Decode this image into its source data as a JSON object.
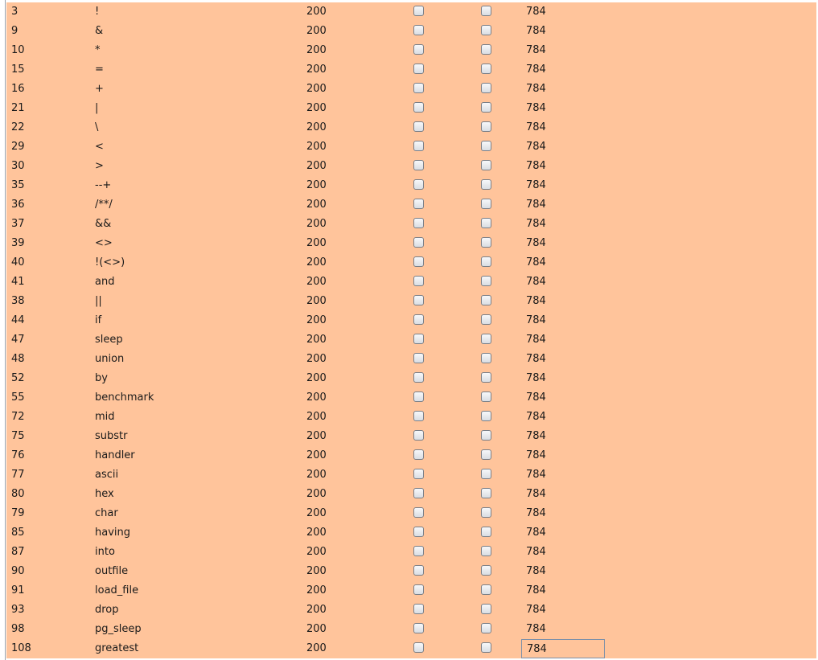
{
  "table": {
    "rows": [
      {
        "id": "3",
        "payload": "!",
        "status": "200",
        "length": "784"
      },
      {
        "id": "9",
        "payload": "&",
        "status": "200",
        "length": "784"
      },
      {
        "id": "10",
        "payload": "*",
        "status": "200",
        "length": "784"
      },
      {
        "id": "15",
        "payload": "=",
        "status": "200",
        "length": "784"
      },
      {
        "id": "16",
        "payload": "+",
        "status": "200",
        "length": "784"
      },
      {
        "id": "21",
        "payload": "|",
        "status": "200",
        "length": "784"
      },
      {
        "id": "22",
        "payload": "\\",
        "status": "200",
        "length": "784"
      },
      {
        "id": "29",
        "payload": "<",
        "status": "200",
        "length": "784"
      },
      {
        "id": "30",
        "payload": ">",
        "status": "200",
        "length": "784"
      },
      {
        "id": "35",
        "payload": "--+",
        "status": "200",
        "length": "784"
      },
      {
        "id": "36",
        "payload": "/**/",
        "status": "200",
        "length": "784"
      },
      {
        "id": "37",
        "payload": "&&",
        "status": "200",
        "length": "784"
      },
      {
        "id": "39",
        "payload": "<>",
        "status": "200",
        "length": "784"
      },
      {
        "id": "40",
        "payload": "!(<>)",
        "status": "200",
        "length": "784"
      },
      {
        "id": "41",
        "payload": "and",
        "status": "200",
        "length": "784"
      },
      {
        "id": "38",
        "payload": "||",
        "status": "200",
        "length": "784"
      },
      {
        "id": "44",
        "payload": "if",
        "status": "200",
        "length": "784"
      },
      {
        "id": "47",
        "payload": "sleep",
        "status": "200",
        "length": "784"
      },
      {
        "id": "48",
        "payload": "union",
        "status": "200",
        "length": "784"
      },
      {
        "id": "52",
        "payload": "by",
        "status": "200",
        "length": "784"
      },
      {
        "id": "55",
        "payload": "benchmark",
        "status": "200",
        "length": "784"
      },
      {
        "id": "72",
        "payload": "mid",
        "status": "200",
        "length": "784"
      },
      {
        "id": "75",
        "payload": "substr",
        "status": "200",
        "length": "784"
      },
      {
        "id": "76",
        "payload": "handler",
        "status": "200",
        "length": "784"
      },
      {
        "id": "77",
        "payload": "ascii",
        "status": "200",
        "length": "784"
      },
      {
        "id": "80",
        "payload": "hex",
        "status": "200",
        "length": "784"
      },
      {
        "id": "79",
        "payload": "char",
        "status": "200",
        "length": "784"
      },
      {
        "id": "85",
        "payload": "having",
        "status": "200",
        "length": "784"
      },
      {
        "id": "87",
        "payload": "into",
        "status": "200",
        "length": "784"
      },
      {
        "id": "90",
        "payload": "outfile",
        "status": "200",
        "length": "784"
      },
      {
        "id": "91",
        "payload": "load_file",
        "status": "200",
        "length": "784"
      },
      {
        "id": "93",
        "payload": "drop",
        "status": "200",
        "length": "784"
      },
      {
        "id": "98",
        "payload": "pg_sleep",
        "status": "200",
        "length": "784"
      },
      {
        "id": "108",
        "payload": "greatest",
        "status": "200",
        "length": "784",
        "focused_cell": "length"
      }
    ],
    "row_highlight_color": "#ffc49b",
    "checkbox_icon": "checkbox-unchecked-icon"
  }
}
